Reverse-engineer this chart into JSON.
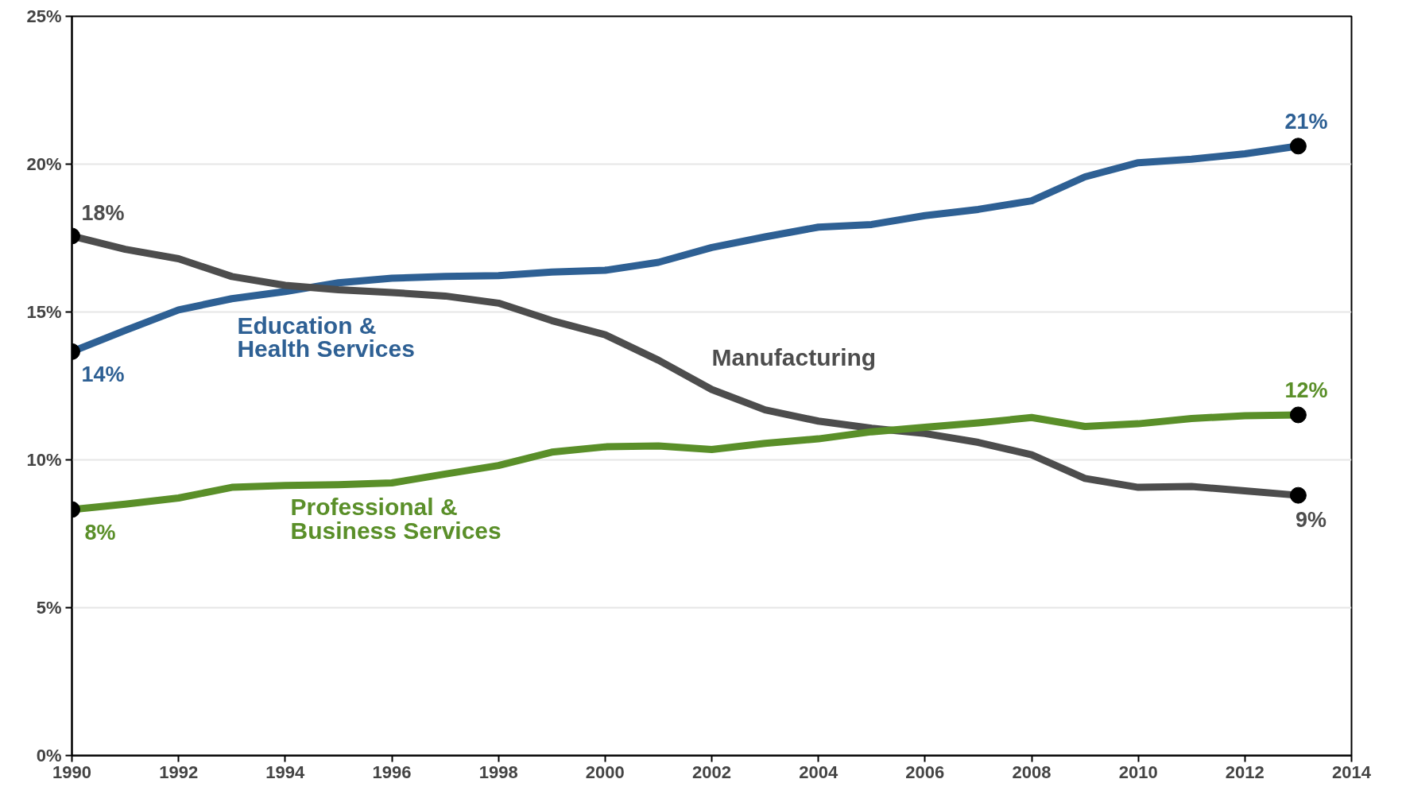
{
  "chart_data": {
    "type": "line",
    "x": [
      1990,
      1991,
      1992,
      1993,
      1994,
      1995,
      1996,
      1997,
      1998,
      1999,
      2000,
      2001,
      2002,
      2003,
      2004,
      2005,
      2006,
      2007,
      2008,
      2009,
      2010,
      2011,
      2012,
      2013
    ],
    "series": [
      {
        "name": "Education &\nHealth Services",
        "color": "#2e6094",
        "values": [
          13.66,
          14.38,
          15.07,
          15.45,
          15.69,
          15.99,
          16.14,
          16.2,
          16.23,
          16.35,
          16.41,
          16.68,
          17.18,
          17.54,
          17.87,
          17.96,
          18.26,
          18.47,
          18.76,
          19.57,
          20.05,
          20.17,
          20.35,
          20.61
        ]
      },
      {
        "name": "Manufacturing",
        "color": "#4d4d4d",
        "values": [
          17.57,
          17.12,
          16.8,
          16.2,
          15.9,
          15.75,
          15.66,
          15.54,
          15.3,
          14.71,
          14.23,
          13.37,
          12.38,
          11.69,
          11.31,
          11.07,
          10.89,
          10.59,
          10.17,
          9.37,
          9.07,
          9.1,
          8.95,
          8.8
        ]
      },
      {
        "name": "Professional &\nBusiness Services",
        "color": "#5a8f29",
        "values": [
          8.32,
          8.5,
          8.71,
          9.07,
          9.13,
          9.16,
          9.22,
          9.52,
          9.81,
          10.26,
          10.44,
          10.47,
          10.35,
          10.56,
          10.71,
          10.95,
          11.1,
          11.25,
          11.43,
          11.13,
          11.22,
          11.4,
          11.49,
          11.52
        ]
      }
    ],
    "annotations": [
      "18%",
      "14%",
      "8%",
      "21%",
      "12%",
      "9%"
    ],
    "xlim": [
      1990,
      2014
    ],
    "xticks": [
      1990,
      1992,
      1994,
      1996,
      1998,
      2000,
      2002,
      2004,
      2006,
      2008,
      2010,
      2012,
      2014
    ],
    "ylim": [
      0,
      25
    ],
    "yticks": [
      {
        "value": 0,
        "label": "0%"
      },
      {
        "value": 5,
        "label": "5%"
      },
      {
        "value": 10,
        "label": "10%"
      },
      {
        "value": 15,
        "label": "15%"
      },
      {
        "value": 20,
        "label": "20%"
      },
      {
        "value": 25,
        "label": "25%"
      }
    ],
    "grid": "y",
    "legend": false,
    "line_style": "solid"
  }
}
